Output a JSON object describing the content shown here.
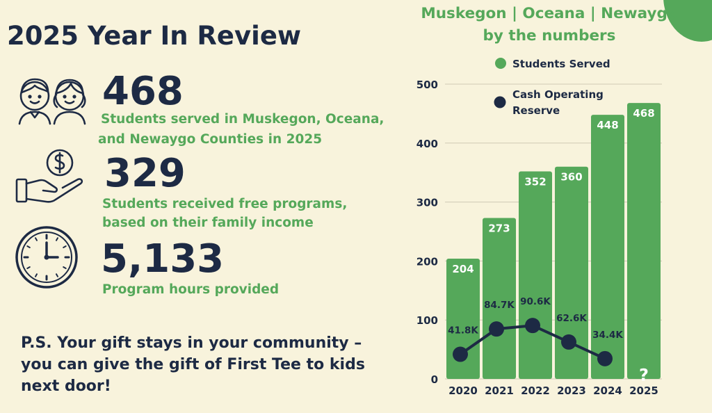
{
  "page": {
    "title": "2025 Year In Review",
    "ps_text": "P.S. Your gift stays in your community –\nyou can give the gift of First Tee to kids\nnext door!"
  },
  "stats": [
    {
      "number": "468",
      "line1": "Students served in Muskegon, Oceana,",
      "line2": "and Newaygo Counties in 2025",
      "icon": "children-icon"
    },
    {
      "number": "329",
      "line1": "Students received free programs,",
      "line2": "based on their family income",
      "icon": "hand-coin-icon"
    },
    {
      "number": "5,133",
      "line1": "Program hours provided",
      "line2": "",
      "icon": "clock-icon"
    }
  ],
  "colors": {
    "background": "#f8f3dc",
    "green": "#55a85a",
    "navy": "#1d2a44"
  },
  "chart_data": {
    "type": "bar",
    "title_line1": "Muskegon | Oceana | Newaygo",
    "title_line2": "by the numbers",
    "categories": [
      "2020",
      "2021",
      "2022",
      "2023",
      "2024",
      "2025"
    ],
    "ylim": [
      0,
      500
    ],
    "yticks": [
      0,
      100,
      200,
      300,
      400,
      500
    ],
    "grid": true,
    "legend_position": "top-left",
    "series": [
      {
        "name": "Students Served",
        "kind": "bar",
        "color": "#55a85a",
        "values": [
          204,
          273,
          352,
          360,
          448,
          468
        ],
        "labels": [
          "204",
          "273",
          "352",
          "360",
          "448",
          "468"
        ]
      },
      {
        "name_line1": "Cash Operating",
        "name_line2": "Reserve",
        "kind": "line",
        "color": "#1d2a44",
        "values": [
          41.8,
          84.7,
          90.6,
          62.6,
          34.4,
          null
        ],
        "labels": [
          "41.8K",
          "84.7K",
          "90.6K",
          "62.6K",
          "34.4K",
          null
        ]
      }
    ],
    "annotations": [
      {
        "category": "2025",
        "text": "?"
      }
    ]
  }
}
